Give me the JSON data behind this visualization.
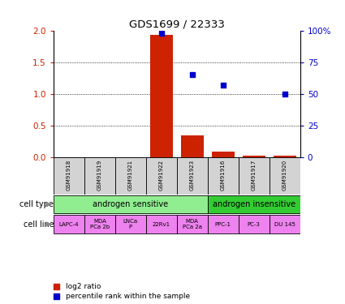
{
  "title": "GDS1699 / 22333",
  "samples": [
    "GSM91918",
    "GSM91919",
    "GSM91921",
    "GSM91922",
    "GSM91923",
    "GSM91916",
    "GSM91917",
    "GSM91920"
  ],
  "log2_ratio": [
    0.0,
    0.0,
    0.0,
    1.93,
    0.34,
    0.08,
    0.02,
    0.02
  ],
  "percentile_rank": [
    null,
    null,
    null,
    98,
    65,
    57,
    null,
    50
  ],
  "cell_type_groups": [
    {
      "label": "androgen sensitive",
      "start": 0,
      "end": 5,
      "color": "#90ee90"
    },
    {
      "label": "androgen insensitive",
      "start": 5,
      "end": 8,
      "color": "#33cc33"
    }
  ],
  "cell_lines": [
    "LAPC-4",
    "MDA\nPCa 2b",
    "LNCa\nP",
    "22Rv1",
    "MDA\nPCa 2a",
    "PPC-1",
    "PC-3",
    "DU 145"
  ],
  "cell_line_color": "#ee82ee",
  "sample_box_color": "#d3d3d3",
  "bar_color": "#cc2200",
  "scatter_color": "#0000cc",
  "ylim_left": [
    0,
    2
  ],
  "ylim_right": [
    0,
    100
  ],
  "yticks_left": [
    0,
    0.5,
    1.0,
    1.5,
    2.0
  ],
  "yticks_right": [
    0,
    25,
    50,
    75,
    100
  ],
  "left_label_color": "#cc2200",
  "right_label_color": "#0000cc",
  "legend_red_label": "log2 ratio",
  "legend_blue_label": "percentile rank within the sample",
  "cell_type_label": "cell type",
  "cell_line_label": "cell line",
  "arrow_color": "#888888"
}
